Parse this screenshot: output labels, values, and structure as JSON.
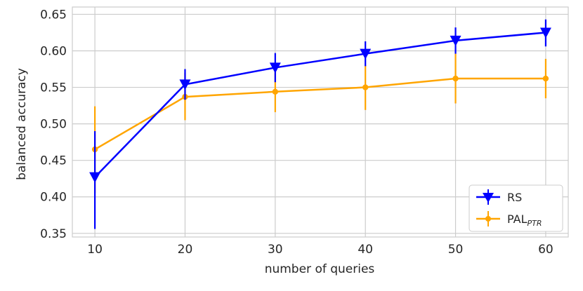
{
  "chart_data": {
    "type": "line",
    "x": [
      10,
      20,
      30,
      40,
      50,
      60
    ],
    "xlabel": "number of queries",
    "ylabel": "balanced accuracy",
    "xlim": [
      7.5,
      62.5
    ],
    "ylim": [
      0.345,
      0.66
    ],
    "xticks": [
      "10",
      "20",
      "30",
      "40",
      "50",
      "60"
    ],
    "yticks": [
      "0.35",
      "0.40",
      "0.45",
      "0.50",
      "0.55",
      "0.60",
      "0.65"
    ],
    "grid": true,
    "legend_position": "bottom-right",
    "series": [
      {
        "name": "RS",
        "color": "#0000ff",
        "marker": "triangle-down",
        "values": [
          0.427,
          0.554,
          0.577,
          0.596,
          0.614,
          0.625
        ],
        "error_low": [
          0.356,
          0.533,
          0.557,
          0.579,
          0.596,
          0.606
        ],
        "error_high": [
          0.49,
          0.575,
          0.597,
          0.613,
          0.632,
          0.643
        ]
      },
      {
        "name": "PAL",
        "name_subscript": "PTR",
        "color": "#ffa500",
        "marker": "circle",
        "values": [
          0.465,
          0.537,
          0.544,
          0.55,
          0.562,
          0.562
        ],
        "error_low": [
          0.405,
          0.505,
          0.516,
          0.519,
          0.528,
          0.535
        ],
        "error_high": [
          0.524,
          0.57,
          0.575,
          0.58,
          0.596,
          0.589
        ]
      }
    ]
  }
}
